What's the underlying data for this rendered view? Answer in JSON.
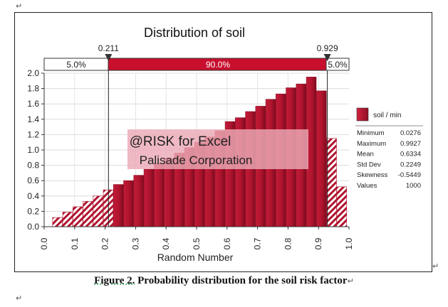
{
  "document": {
    "para_mark": "↵",
    "caption_label": "Figure 2.",
    "caption_text": "Probability distribution for the soil risk factor"
  },
  "colors": {
    "bar": "#b0142e",
    "bar_light": "#d93a55",
    "band": "#c8102e",
    "overlay": "#e9a7b3"
  },
  "chart_data": {
    "type": "bar",
    "title": "Distribution of soil",
    "xlabel": "Random Number",
    "ylabel": "",
    "xlim": [
      0.0,
      1.0
    ],
    "ylim": [
      0.0,
      2.0
    ],
    "x_ticks": [
      "0.0",
      "0.1",
      "0.2",
      "0.3",
      "0.4",
      "0.5",
      "0.6",
      "0.7",
      "0.8",
      "0.9",
      "1.0"
    ],
    "y_ticks": [
      "0.0",
      "0.2",
      "0.4",
      "0.6",
      "0.8",
      "1.0",
      "1.2",
      "1.4",
      "1.6",
      "1.8",
      "2.0"
    ],
    "bin_width": 0.0333,
    "bin_starts": [
      0.0276,
      0.0609,
      0.0942,
      0.1275,
      0.1608,
      0.1941,
      0.2274,
      0.2607,
      0.294,
      0.3273,
      0.3606,
      0.3939,
      0.4272,
      0.4605,
      0.4938,
      0.5271,
      0.5604,
      0.5937,
      0.627,
      0.6603,
      0.6936,
      0.7269,
      0.7602,
      0.7935,
      0.8268,
      0.8601,
      0.8934,
      0.9267,
      0.96
    ],
    "values": [
      0.12,
      0.19,
      0.26,
      0.33,
      0.4,
      0.48,
      0.55,
      0.6,
      0.67,
      0.75,
      0.83,
      0.89,
      0.96,
      1.03,
      1.1,
      1.17,
      1.25,
      1.37,
      1.42,
      1.5,
      1.57,
      1.66,
      1.73,
      1.81,
      1.86,
      1.95,
      1.77,
      1.15,
      0.52
    ],
    "left_cutoff": {
      "label": "0.211",
      "value": 0.211
    },
    "right_cutoff": {
      "label": "0.929",
      "value": 0.929
    },
    "band": {
      "left": "5.0%",
      "middle": "90.0%",
      "right": "5.0%"
    },
    "legend": {
      "label": "soil / min",
      "position": "right"
    },
    "stats": [
      {
        "name": "Minimum",
        "value": "0.0276"
      },
      {
        "name": "Maximum",
        "value": "0.9927"
      },
      {
        "name": "Mean",
        "value": "0.6334"
      },
      {
        "name": "Std Dev",
        "value": "0.2249"
      },
      {
        "name": "Skewness",
        "value": "-0.5449"
      },
      {
        "name": "Values",
        "value": "1000"
      }
    ],
    "watermark": {
      "line1": "@RISK for Excel",
      "line2": "Palisade Corporation"
    }
  }
}
